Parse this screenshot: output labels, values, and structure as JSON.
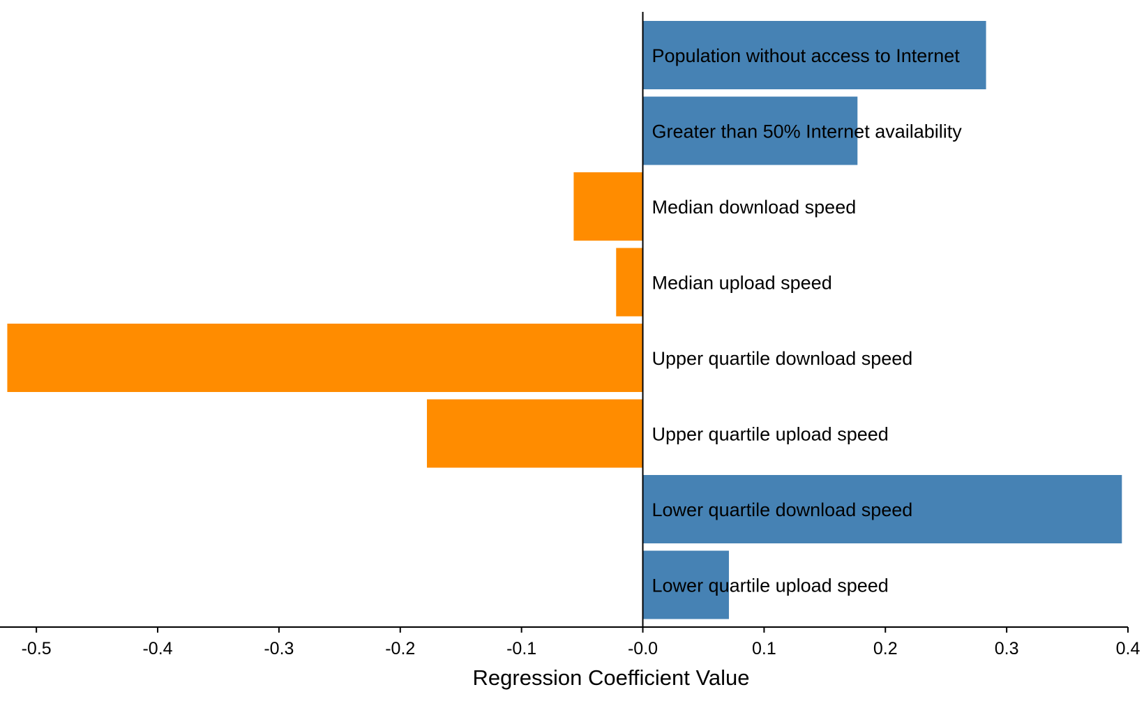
{
  "chart_data": {
    "type": "bar",
    "orientation": "horizontal",
    "xlabel": "Regression Coefficient Value",
    "ylabel": "",
    "xlim": [
      -0.53,
      0.4
    ],
    "x_ticks": [
      "-0.5",
      "-0.4",
      "-0.3",
      "-0.2",
      "-0.1",
      "-0.0",
      "0.1",
      "0.2",
      "0.3",
      "0.4"
    ],
    "x_tick_values": [
      -0.5,
      -0.4,
      -0.3,
      -0.2,
      -0.1,
      0.0,
      0.1,
      0.2,
      0.3,
      0.4
    ],
    "grid": false,
    "legend": "none",
    "colors": {
      "positive": "#4682b4",
      "negative": "#ff8c00",
      "axis": "#000000"
    },
    "categories": [
      "Population without access to Internet",
      "Greater than 50% Internet availability",
      "Median download speed",
      "Median upload speed",
      "Upper quartile download speed",
      "Upper quartile upload speed",
      "Lower quartile download speed",
      "Lower quartile upload speed"
    ],
    "values": [
      0.283,
      0.177,
      -0.057,
      -0.022,
      -0.524,
      -0.178,
      0.395,
      0.071
    ]
  }
}
